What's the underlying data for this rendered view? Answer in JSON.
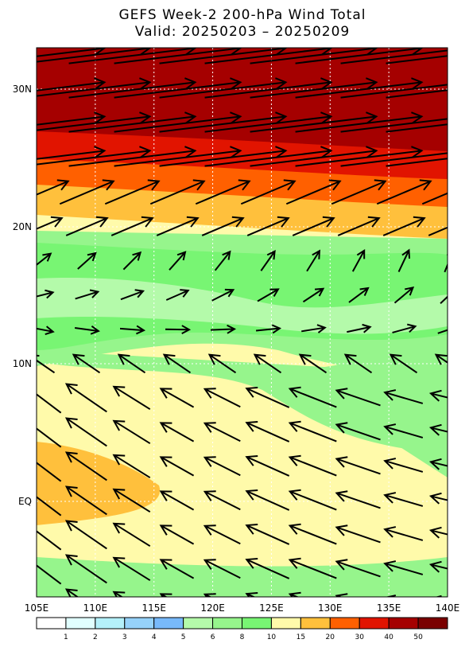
{
  "header": {
    "title": "GEFS Week-2 200-hPa Wind Total",
    "subtitle": "Valid: 20250203 – 20250209"
  },
  "map": {
    "lat_labels": [
      "30N",
      "20N",
      "10N",
      "EQ"
    ],
    "lon_labels": [
      "105E",
      "110E",
      "115E",
      "120E",
      "125E",
      "130E",
      "135E",
      "140E"
    ]
  },
  "colorbar": {
    "labels": [
      "1",
      "2",
      "3",
      "4",
      "5",
      "6",
      "8",
      "10",
      "15",
      "20",
      "30",
      "40",
      "50"
    ],
    "colors": [
      "#ffffff",
      "#e1ffff",
      "#b4f0fa",
      "#96d2fa",
      "#78b9fa",
      "#b4faaa",
      "#96f58c",
      "#78f573",
      "#fffaaa",
      "#ffc03c",
      "#ff6000",
      "#e11400",
      "#a50000",
      "#7a0000"
    ]
  }
}
